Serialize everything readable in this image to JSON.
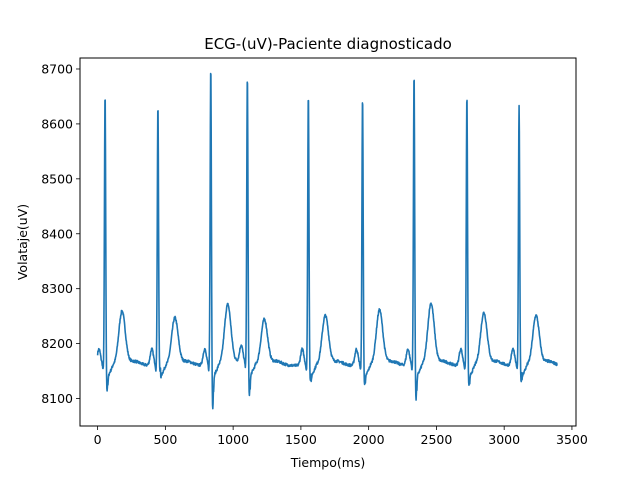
{
  "chart_data": {
    "type": "line",
    "title": "ECG-(uV)-Paciente diagnosticado",
    "xlabel": "Tiempo(ms)",
    "ylabel": "Volataje(uV)",
    "xlim": [
      -130,
      3530
    ],
    "ylim": [
      8050,
      8720
    ],
    "xticks": [
      0,
      500,
      1000,
      1500,
      2000,
      2500,
      3000,
      3500
    ],
    "yticks": [
      8100,
      8200,
      8300,
      8400,
      8500,
      8600,
      8700
    ],
    "grid": false,
    "line_color": "#1f77b4",
    "series": [
      {
        "baseline": 8160,
        "beats": [
          {
            "r_time": 55,
            "r_peak": 8655,
            "s_trough": 8112,
            "t_peak": 8258
          },
          {
            "r_time": 445,
            "r_peak": 8636,
            "s_trough": 8150,
            "t_peak": 8246
          },
          {
            "r_time": 835,
            "r_peak": 8708,
            "s_trough": 8080,
            "t_peak": 8270
          },
          {
            "r_time": 1105,
            "r_peak": 8685,
            "s_trough": 8100,
            "t_peak": 8243
          },
          {
            "r_time": 1555,
            "r_peak": 8655,
            "s_trough": 8130,
            "t_peak": 8250
          },
          {
            "r_time": 1955,
            "r_peak": 8650,
            "s_trough": 8125,
            "t_peak": 8260
          },
          {
            "r_time": 2335,
            "r_peak": 8692,
            "s_trough": 8095,
            "t_peak": 8272
          },
          {
            "r_time": 2725,
            "r_peak": 8654,
            "s_trough": 8120,
            "t_peak": 8255
          },
          {
            "r_time": 3110,
            "r_peak": 8634,
            "s_trough": 8130,
            "t_peak": 8250
          }
        ],
        "x_start": 0,
        "x_end": 3390
      }
    ]
  }
}
